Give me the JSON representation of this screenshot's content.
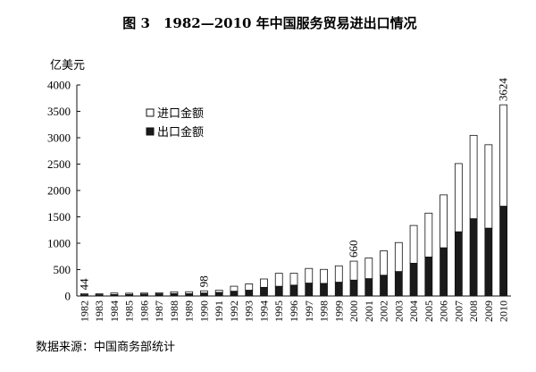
{
  "chart_data": {
    "type": "bar",
    "title": "图 3　1982—2010 年中国服务贸易进出口情况",
    "ylabel": "亿美元",
    "xlabel": "",
    "ylim": [
      0,
      4000
    ],
    "yticks": [
      0,
      500,
      1000,
      1500,
      2000,
      2500,
      3000,
      3500,
      4000
    ],
    "categories": [
      "1982",
      "1983",
      "1984",
      "1985",
      "1986",
      "1987",
      "1988",
      "1989",
      "1990",
      "1991",
      "1992",
      "1993",
      "1994",
      "1995",
      "1996",
      "1997",
      "1998",
      "1999",
      "2000",
      "2001",
      "2002",
      "2003",
      "2004",
      "2005",
      "2006",
      "2007",
      "2008",
      "2009",
      "2010"
    ],
    "stacked": true,
    "series": [
      {
        "name": "出口金额",
        "color": "#1a1a1a",
        "values": [
          25,
          25,
          28,
          30,
          36,
          42,
          47,
          45,
          57,
          69,
          91,
          110,
          164,
          184,
          206,
          245,
          239,
          262,
          301,
          329,
          394,
          464,
          621,
          739,
          914,
          1217,
          1465,
          1286,
          1702
        ]
      },
      {
        "name": "进口金额",
        "color": "#ffffff",
        "values": [
          19,
          18,
          28,
          23,
          20,
          20,
          33,
          36,
          41,
          39,
          94,
          120,
          158,
          246,
          224,
          277,
          265,
          310,
          359,
          390,
          461,
          549,
          716,
          832,
          1003,
          1293,
          1580,
          1581,
          1922
        ]
      }
    ],
    "annotations": [
      {
        "category": "1982",
        "text": "44"
      },
      {
        "category": "1990",
        "text": "98"
      },
      {
        "category": "2000",
        "text": "660"
      },
      {
        "category": "2010",
        "text": "3624"
      }
    ],
    "legend_position": "top-left",
    "grid": false,
    "source": "数据来源：中国商务部统计"
  }
}
